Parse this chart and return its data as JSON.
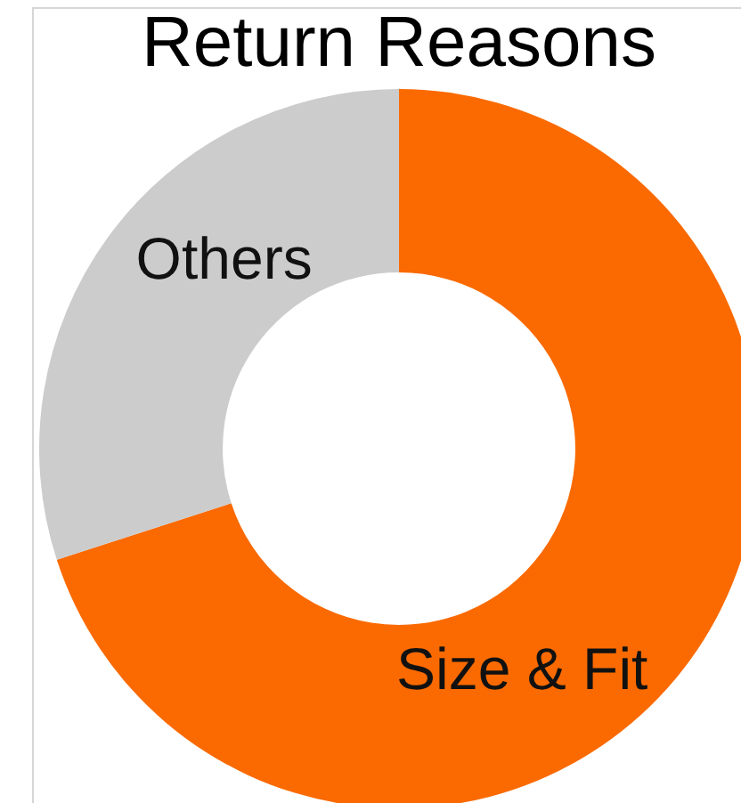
{
  "chart_data": {
    "type": "donut",
    "title": "Return Reasons",
    "categories": [
      "Size & Fit",
      "Others"
    ],
    "values": [
      70,
      30
    ],
    "colors": [
      "#fa6a00",
      "#cccccc"
    ]
  }
}
